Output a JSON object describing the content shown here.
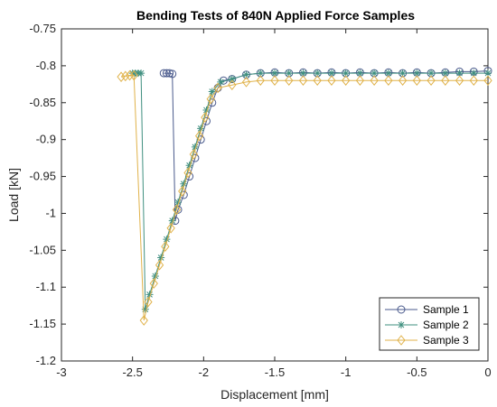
{
  "chart_data": {
    "type": "line",
    "title": "Bending Tests of 840N Applied Force Samples",
    "xlabel": "Displacement [mm]",
    "ylabel": "Load [kN]",
    "xlim": [
      -3,
      0
    ],
    "ylim": [
      -1.2,
      -0.75
    ],
    "xticks": [
      -3,
      -2.5,
      -2,
      -1.5,
      -1,
      -0.5,
      0
    ],
    "xtick_labels": [
      "-3",
      "-2.5",
      "-2",
      "-1.5",
      "-1",
      "-0.5",
      "0"
    ],
    "yticks": [
      -0.75,
      -0.8,
      -0.85,
      -0.9,
      -0.95,
      -1,
      -1.05,
      -1.1,
      -1.15,
      -1.2
    ],
    "ytick_labels": [
      "-0.75",
      "-0.8",
      "-0.85",
      "-0.9",
      "-0.95",
      "-1",
      "-1.05",
      "-1.1",
      "-1.15",
      "-1.2"
    ],
    "grid": false,
    "legend_position": "bottom-right",
    "series": [
      {
        "name": "Sample 1",
        "color": "#4a5a8c",
        "marker": "circle",
        "points": [
          [
            -2.28,
            -0.81
          ],
          [
            -2.26,
            -0.81
          ],
          [
            -2.24,
            -0.81
          ],
          [
            -2.22,
            -0.811
          ],
          [
            -2.2,
            -1.01
          ],
          [
            -2.18,
            -0.995
          ],
          [
            -2.14,
            -0.975
          ],
          [
            -2.1,
            -0.95
          ],
          [
            -2.06,
            -0.925
          ],
          [
            -2.02,
            -0.9
          ],
          [
            -1.98,
            -0.875
          ],
          [
            -1.94,
            -0.85
          ],
          [
            -1.9,
            -0.83
          ],
          [
            -1.86,
            -0.82
          ],
          [
            -1.8,
            -0.818
          ],
          [
            -1.7,
            -0.812
          ],
          [
            -1.6,
            -0.81
          ],
          [
            -1.5,
            -0.809
          ],
          [
            -1.4,
            -0.81
          ],
          [
            -1.3,
            -0.809
          ],
          [
            -1.2,
            -0.81
          ],
          [
            -1.1,
            -0.809
          ],
          [
            -1.0,
            -0.81
          ],
          [
            -0.9,
            -0.809
          ],
          [
            -0.8,
            -0.81
          ],
          [
            -0.7,
            -0.809
          ],
          [
            -0.6,
            -0.81
          ],
          [
            -0.5,
            -0.809
          ],
          [
            -0.4,
            -0.81
          ],
          [
            -0.3,
            -0.809
          ],
          [
            -0.2,
            -0.808
          ],
          [
            -0.1,
            -0.808
          ],
          [
            0,
            -0.807
          ]
        ]
      },
      {
        "name": "Sample 2",
        "color": "#3f8f7f",
        "marker": "asterisk",
        "points": [
          [
            -2.5,
            -0.81
          ],
          [
            -2.48,
            -0.81
          ],
          [
            -2.46,
            -0.81
          ],
          [
            -2.44,
            -0.81
          ],
          [
            -2.41,
            -1.13
          ],
          [
            -2.38,
            -1.11
          ],
          [
            -2.34,
            -1.085
          ],
          [
            -2.3,
            -1.06
          ],
          [
            -2.26,
            -1.035
          ],
          [
            -2.22,
            -1.01
          ],
          [
            -2.18,
            -0.985
          ],
          [
            -2.14,
            -0.96
          ],
          [
            -2.1,
            -0.935
          ],
          [
            -2.06,
            -0.91
          ],
          [
            -2.02,
            -0.885
          ],
          [
            -1.98,
            -0.86
          ],
          [
            -1.94,
            -0.835
          ],
          [
            -1.88,
            -0.822
          ],
          [
            -1.8,
            -0.818
          ],
          [
            -1.7,
            -0.812
          ],
          [
            -1.6,
            -0.81
          ],
          [
            -1.5,
            -0.81
          ],
          [
            -1.4,
            -0.81
          ],
          [
            -1.3,
            -0.81
          ],
          [
            -1.2,
            -0.81
          ],
          [
            -1.1,
            -0.81
          ],
          [
            -1.0,
            -0.81
          ],
          [
            -0.9,
            -0.81
          ],
          [
            -0.8,
            -0.81
          ],
          [
            -0.7,
            -0.81
          ],
          [
            -0.6,
            -0.81
          ],
          [
            -0.5,
            -0.81
          ],
          [
            -0.4,
            -0.81
          ],
          [
            -0.3,
            -0.81
          ],
          [
            -0.2,
            -0.81
          ],
          [
            -0.1,
            -0.81
          ],
          [
            0,
            -0.81
          ]
        ]
      },
      {
        "name": "Sample 3",
        "color": "#e0b24a",
        "marker": "diamond",
        "points": [
          [
            -2.58,
            -0.815
          ],
          [
            -2.55,
            -0.814
          ],
          [
            -2.52,
            -0.813
          ],
          [
            -2.49,
            -0.813
          ],
          [
            -2.42,
            -1.145
          ],
          [
            -2.39,
            -1.12
          ],
          [
            -2.35,
            -1.095
          ],
          [
            -2.31,
            -1.07
          ],
          [
            -2.27,
            -1.045
          ],
          [
            -2.23,
            -1.02
          ],
          [
            -2.19,
            -0.995
          ],
          [
            -2.15,
            -0.97
          ],
          [
            -2.11,
            -0.945
          ],
          [
            -2.07,
            -0.92
          ],
          [
            -2.03,
            -0.895
          ],
          [
            -1.99,
            -0.87
          ],
          [
            -1.95,
            -0.845
          ],
          [
            -1.9,
            -0.83
          ],
          [
            -1.8,
            -0.826
          ],
          [
            -1.7,
            -0.822
          ],
          [
            -1.6,
            -0.82
          ],
          [
            -1.5,
            -0.82
          ],
          [
            -1.4,
            -0.82
          ],
          [
            -1.3,
            -0.82
          ],
          [
            -1.2,
            -0.82
          ],
          [
            -1.1,
            -0.82
          ],
          [
            -1.0,
            -0.82
          ],
          [
            -0.9,
            -0.82
          ],
          [
            -0.8,
            -0.82
          ],
          [
            -0.7,
            -0.82
          ],
          [
            -0.6,
            -0.82
          ],
          [
            -0.5,
            -0.82
          ],
          [
            -0.4,
            -0.82
          ],
          [
            -0.3,
            -0.82
          ],
          [
            -0.2,
            -0.82
          ],
          [
            -0.1,
            -0.82
          ],
          [
            0,
            -0.82
          ]
        ]
      }
    ]
  }
}
